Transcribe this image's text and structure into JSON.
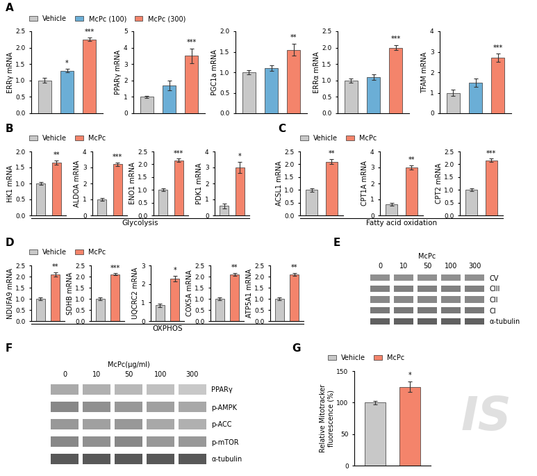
{
  "chart_data": [
    {
      "type": "bar",
      "title": "A",
      "categories": [
        "Vehicle",
        "McPc (100)",
        "McPc (300)"
      ],
      "colors": [
        "#c8c8c8",
        "#6baed6",
        "#f4846b"
      ],
      "legend": "lower left",
      "tick_labels": "y",
      "subplots": [
        {
          "ylabel": "ERRγ mRNA",
          "ylim": [
            0,
            2.5
          ],
          "yticks": [
            {
              "value": 0,
              "label": "0.0"
            },
            0.5,
            {
              "value": 1,
              "label": "1.0"
            },
            1.5,
            {
              "value": 2,
              "label": "2.0"
            },
            2.5
          ],
          "values": [
            1.0,
            1.3,
            2.25
          ],
          "errors": [
            0.07,
            0.05,
            0.05
          ],
          "annotations": [
            null,
            "*",
            "***"
          ]
        },
        {
          "ylabel": "PPARγ mRNA",
          "ylim": [
            0,
            5
          ],
          "yticks": [
            0,
            1,
            2,
            3,
            4,
            5
          ],
          "values": [
            1.0,
            1.7,
            3.5
          ],
          "errors": [
            0.07,
            0.3,
            0.45
          ],
          "annotations": [
            null,
            null,
            "***"
          ]
        },
        {
          "ylabel": "PGC1a mRNA",
          "ylim": [
            0,
            2
          ],
          "yticks": [
            {
              "value": 0,
              "label": "0.0"
            },
            0.5,
            {
              "value": 1,
              "label": "1.0"
            },
            1.5,
            {
              "value": 2,
              "label": "2.0"
            }
          ],
          "values": [
            1.0,
            1.1,
            1.55
          ],
          "errors": [
            0.05,
            0.07,
            0.15
          ],
          "annotations": [
            null,
            null,
            "**"
          ]
        },
        {
          "ylabel": "ERRα mRNA",
          "ylim": [
            0,
            2.5
          ],
          "yticks": [
            {
              "value": 0,
              "label": "0.0"
            },
            0.5,
            {
              "value": 1,
              "label": "1.0"
            },
            1.5,
            {
              "value": 2,
              "label": "2.0"
            },
            2.5
          ],
          "values": [
            1.0,
            1.1,
            2.0
          ],
          "errors": [
            0.06,
            0.08,
            0.08
          ],
          "annotations": [
            null,
            null,
            "***"
          ]
        },
        {
          "ylabel": "TFAM mRNA",
          "ylim": [
            0,
            4
          ],
          "yticks": [
            0,
            1,
            2,
            3,
            4
          ],
          "values": [
            1.0,
            1.5,
            2.7
          ],
          "errors": [
            0.15,
            0.2,
            0.2
          ],
          "annotations": [
            null,
            null,
            "***"
          ]
        }
      ]
    },
    {
      "type": "bar",
      "title": "B",
      "subtitle": "Glycolysis",
      "categories": [
        "Vehicle",
        "McPc"
      ],
      "colors": [
        "#c8c8c8",
        "#f4846b"
      ],
      "legend": "lower left",
      "tick_labels": "y",
      "subplots": [
        {
          "ylabel": "HK1 mRNA",
          "ylim": [
            0,
            2
          ],
          "yticks": [
            {
              "value": 0,
              "label": "0.0"
            },
            0.5,
            {
              "value": 1,
              "label": "1.0"
            },
            1.5,
            {
              "value": 2,
              "label": "2.0"
            }
          ],
          "values": [
            1.0,
            1.65
          ],
          "errors": [
            0.05,
            0.07
          ],
          "annotations": [
            null,
            "**"
          ]
        },
        {
          "ylabel": "ALDOA mRNA",
          "ylim": [
            0,
            4
          ],
          "yticks": [
            0,
            1,
            2,
            3,
            4
          ],
          "values": [
            1.0,
            3.2
          ],
          "errors": [
            0.07,
            0.1
          ],
          "annotations": [
            null,
            "***"
          ]
        },
        {
          "ylabel": "ENO1 mRNA",
          "ylim": [
            0,
            2.5
          ],
          "yticks": [
            {
              "value": 0,
              "label": "0.0"
            },
            0.5,
            {
              "value": 1,
              "label": "1.0"
            },
            1.5,
            {
              "value": 2,
              "label": "2.0"
            },
            2.5
          ],
          "values": [
            1.0,
            2.15
          ],
          "errors": [
            0.05,
            0.07
          ],
          "annotations": [
            null,
            "***"
          ]
        },
        {
          "ylabel": "PDK1 mRNA",
          "ylim": [
            0,
            4
          ],
          "yticks": [
            0,
            1,
            2,
            3,
            4
          ],
          "values": [
            0.6,
            3.0
          ],
          "errors": [
            0.15,
            0.35
          ],
          "annotations": [
            null,
            "*"
          ]
        }
      ]
    },
    {
      "type": "bar",
      "title": "C",
      "subtitle": "Fatty acid oxidation",
      "categories": [
        "Vehicle",
        "McPc"
      ],
      "colors": [
        "#c8c8c8",
        "#f4846b"
      ],
      "legend": "lower left",
      "tick_labels": "y",
      "subplots": [
        {
          "ylabel": "ACSL1 mRNA",
          "ylim": [
            0,
            2.5
          ],
          "yticks": [
            {
              "value": 0,
              "label": "0.0"
            },
            0.5,
            {
              "value": 1,
              "label": "1.0"
            },
            1.5,
            {
              "value": 2,
              "label": "2.0"
            },
            2.5
          ],
          "values": [
            1.0,
            2.1
          ],
          "errors": [
            0.07,
            0.1
          ],
          "annotations": [
            null,
            "**"
          ]
        },
        {
          "ylabel": "CPT1A mRNA",
          "ylim": [
            0,
            4
          ],
          "yticks": [
            0,
            1,
            2,
            3,
            4
          ],
          "values": [
            0.7,
            3.0
          ],
          "errors": [
            0.1,
            0.15
          ],
          "annotations": [
            null,
            "**"
          ]
        },
        {
          "ylabel": "CPT2 mRNA",
          "ylim": [
            0,
            2.5
          ],
          "yticks": [
            {
              "value": 0,
              "label": "0.0"
            },
            0.5,
            {
              "value": 1,
              "label": "1.0"
            },
            1.5,
            {
              "value": 2,
              "label": "2.0"
            },
            2.5
          ],
          "values": [
            1.0,
            2.15
          ],
          "errors": [
            0.05,
            0.07
          ],
          "annotations": [
            null,
            "***"
          ]
        }
      ]
    },
    {
      "type": "bar",
      "title": "D",
      "subtitle": "OXPHOS",
      "categories": [
        "Vehicle",
        "McPc"
      ],
      "colors": [
        "#c8c8c8",
        "#f4846b"
      ],
      "legend": "lower left",
      "tick_labels": "y",
      "subplots": [
        {
          "ylabel": "NDUFA9 mRNA",
          "ylim": [
            0,
            2.5
          ],
          "yticks": [
            {
              "value": 0,
              "label": "0.0"
            },
            0.5,
            {
              "value": 1,
              "label": "1.0"
            },
            1.5,
            {
              "value": 2,
              "label": "2.0"
            },
            2.5
          ],
          "values": [
            1.0,
            2.1
          ],
          "errors": [
            0.05,
            0.1
          ],
          "annotations": [
            null,
            "**"
          ]
        },
        {
          "ylabel": "SDHB mRNA",
          "ylim": [
            0,
            2.5
          ],
          "yticks": [
            {
              "value": 0,
              "label": "0.0"
            },
            0.5,
            {
              "value": 1,
              "label": "1.0"
            },
            1.5,
            {
              "value": 2,
              "label": "2.0"
            },
            2.5
          ],
          "values": [
            1.0,
            2.1
          ],
          "errors": [
            0.05,
            0.05
          ],
          "annotations": [
            null,
            "***"
          ]
        },
        {
          "ylabel": "UQCRC2 mRNA",
          "ylim": [
            0,
            3
          ],
          "yticks": [
            0,
            1,
            2,
            3
          ],
          "values": [
            0.85,
            2.3
          ],
          "errors": [
            0.1,
            0.15
          ],
          "annotations": [
            null,
            "*"
          ]
        },
        {
          "ylabel": "COX5A mRNA",
          "ylim": [
            0,
            2.5
          ],
          "yticks": [
            {
              "value": 0,
              "label": "0.0"
            },
            0.5,
            {
              "value": 1,
              "label": "1.0"
            },
            1.5,
            {
              "value": 2,
              "label": "2.0"
            },
            2.5
          ],
          "values": [
            1.0,
            2.1
          ],
          "errors": [
            0.05,
            0.07
          ],
          "annotations": [
            null,
            "**"
          ]
        },
        {
          "ylabel": "ATP5A1 mRNA",
          "ylim": [
            0,
            2.5
          ],
          "yticks": [
            {
              "value": 0,
              "label": "0.0"
            },
            0.5,
            {
              "value": 1,
              "label": "1.0"
            },
            1.5,
            {
              "value": 2,
              "label": "2.0"
            },
            2.5
          ],
          "values": [
            1.0,
            2.1
          ],
          "errors": [
            0.05,
            0.07
          ],
          "annotations": [
            null,
            "**"
          ]
        }
      ]
    },
    {
      "type": "blot",
      "title": "E",
      "xlabel": "McPc",
      "categories": [
        "0",
        "10",
        "50",
        "100",
        "300"
      ],
      "series": [
        {
          "name": "CV",
          "colors": [
            "#909090",
            "#909090",
            "#909090",
            "#909090",
            "#909090"
          ]
        },
        {
          "name": "CIII",
          "colors": [
            "#808080",
            "#808080",
            "#808080",
            "#808080",
            "#808080"
          ]
        },
        {
          "name": "CII",
          "colors": [
            "#888888",
            "#888888",
            "#888888",
            "#888888",
            "#888888"
          ]
        },
        {
          "name": "CI",
          "colors": [
            "#787878",
            "#787878",
            "#787878",
            "#787878",
            "#787878"
          ]
        },
        {
          "name": "α-tubulin",
          "colors": [
            "#606060",
            "#606060",
            "#606060",
            "#606060",
            "#606060"
          ]
        }
      ]
    },
    {
      "type": "blot",
      "title": "F",
      "xlabel": "McPc(μg/ml)",
      "categories": [
        "0",
        "10",
        "50",
        "100",
        "300"
      ],
      "series": [
        {
          "name": "PPARγ",
          "colors": [
            "#aaaaaa",
            "#b0b0b0",
            "#b8b8b8",
            "#c0c0c0",
            "#c8c8c8"
          ]
        },
        {
          "name": "p-AMPK",
          "colors": [
            "#888888",
            "#909090",
            "#989898",
            "#a0a0a0",
            "#a8a8a8"
          ]
        },
        {
          "name": "p-ACC",
          "colors": [
            "#989898",
            "#a0a0a0",
            "#989898",
            "#a8a8a8",
            "#b0b0b0"
          ]
        },
        {
          "name": "p-mTOR",
          "colors": [
            "#888888",
            "#909090",
            "#888888",
            "#989898",
            "#989898"
          ]
        },
        {
          "name": "α-tubulin",
          "colors": [
            "#585858",
            "#585858",
            "#585858",
            "#585858",
            "#585858"
          ]
        }
      ]
    },
    {
      "type": "bar",
      "title": "G",
      "categories": [
        "Vehicle",
        "McPc"
      ],
      "colors": [
        "#c8c8c8",
        "#f4846b"
      ],
      "legend": "lower left",
      "tick_labels": "y",
      "annotations": [
        "IS"
      ],
      "subplots": [
        {
          "ylabel": "Relative Mitotracker\nfluorescence (%)",
          "ylim": [
            0,
            150
          ],
          "yticks": [
            0,
            50,
            100,
            150
          ],
          "values": [
            100,
            125
          ],
          "errors": [
            3,
            8
          ],
          "annotations": [
            null,
            "*"
          ]
        }
      ]
    }
  ]
}
